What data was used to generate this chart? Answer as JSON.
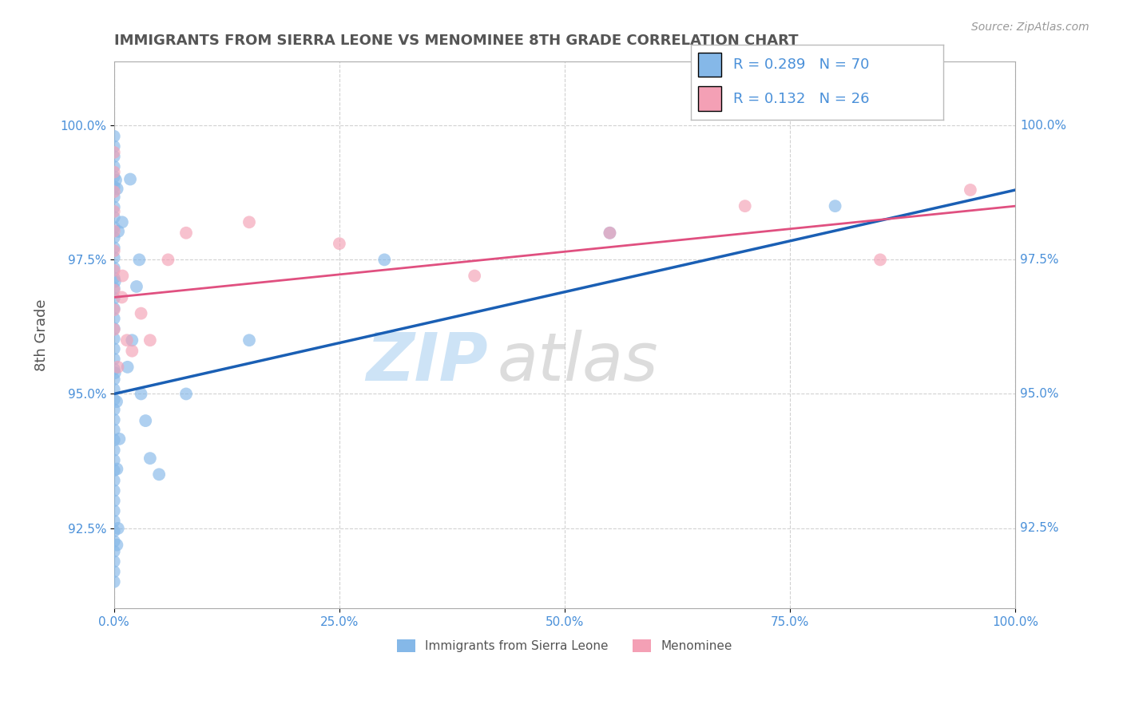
{
  "title": "IMMIGRANTS FROM SIERRA LEONE VS MENOMINEE 8TH GRADE CORRELATION CHART",
  "source": "Source: ZipAtlas.com",
  "ylabel": "8th Grade",
  "legend_blue_label": "Immigrants from Sierra Leone",
  "legend_pink_label": "Menominee",
  "R_blue": 0.289,
  "N_blue": 70,
  "R_pink": 0.132,
  "N_pink": 26,
  "xlim": [
    0.0,
    100.0
  ],
  "ylim": [
    91.0,
    101.2
  ],
  "yticks": [
    92.5,
    95.0,
    97.5,
    100.0
  ],
  "xticks": [
    0.0,
    25.0,
    50.0,
    75.0,
    100.0
  ],
  "blue_color": "#85b8e8",
  "pink_color": "#f4a0b5",
  "blue_line_color": "#1a5fb4",
  "pink_line_color": "#e05080",
  "watermark_zip_color": "#c5dff5",
  "watermark_atlas_color": "#c0c0c0",
  "grid_color": "#cccccc",
  "title_color": "#555555",
  "axis_label_color": "#555555",
  "tick_label_color": "#4a90d9",
  "legend_R_color": "#4a90d9",
  "figsize": [
    14.06,
    8.92
  ]
}
